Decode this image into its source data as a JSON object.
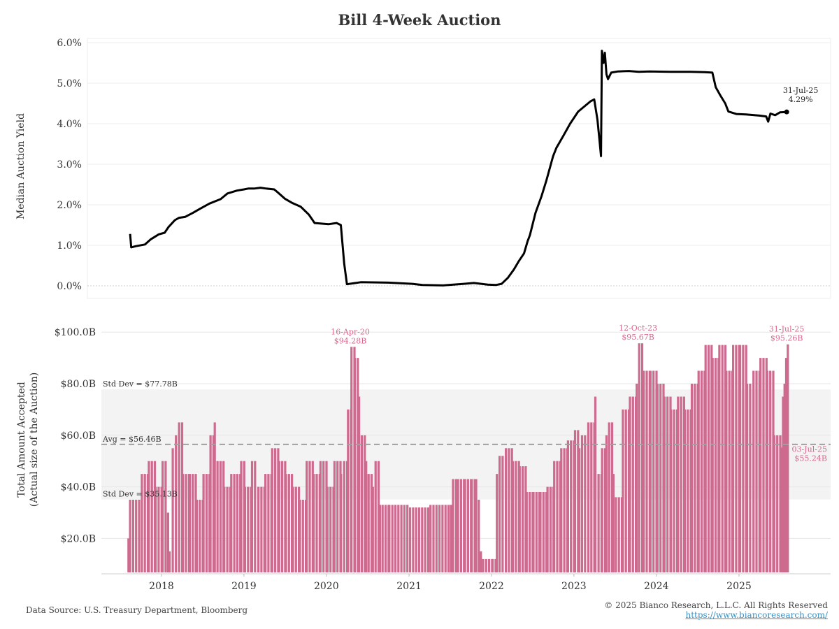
{
  "title": "Bill 4-Week Auction",
  "footer": {
    "source": "Data Source: U.S. Treasury Department, Bloomberg",
    "copyright": "© 2025 Bianco Research, L.L.C. All Rights Reserved",
    "link": "https://www.biancoresearch.com/"
  },
  "colors": {
    "line": "#000000",
    "bar": "#cd6a8d",
    "annotation": "#d9668e",
    "band": "#f3f3f3",
    "avg_line": "#a0a0a0"
  },
  "x_axis": {
    "ticks": [
      "2018",
      "2019",
      "2020",
      "2021",
      "2022",
      "2023",
      "2024",
      "2025"
    ]
  },
  "chart_data": [
    {
      "type": "line",
      "name": "yield",
      "title": "Bill 4-Week Auction",
      "ylabel": "Median Auction Yield",
      "ylim": [
        0,
        6
      ],
      "y_ticks": [
        "0.0%",
        "1.0%",
        "2.0%",
        "3.0%",
        "4.0%",
        "5.0%",
        "6.0%"
      ],
      "grid": true,
      "x": [
        "2017-08-15",
        "2017-08-20",
        "2017-09-10",
        "2017-10-20",
        "2017-11-15",
        "2017-12-20",
        "2018-01-15",
        "2018-02-01",
        "2018-03-01",
        "2018-03-20",
        "2018-04-15",
        "2018-05-20",
        "2018-06-20",
        "2018-08-01",
        "2018-09-20",
        "2018-10-20",
        "2018-12-01",
        "2019-01-01",
        "2019-01-20",
        "2019-02-15",
        "2019-03-15",
        "2019-04-10",
        "2019-05-15",
        "2019-06-01",
        "2019-07-01",
        "2019-08-01",
        "2019-09-10",
        "2019-10-15",
        "2019-11-10",
        "2020-01-10",
        "2020-02-15",
        "2020-03-05",
        "2020-03-20",
        "2020-04-01",
        "2020-06-01",
        "2020-10-01",
        "2021-01-15",
        "2021-03-01",
        "2021-06-01",
        "2021-09-01",
        "2021-10-15",
        "2021-12-15",
        "2022-01-20",
        "2022-02-15",
        "2022-03-15",
        "2022-04-10",
        "2022-05-01",
        "2022-05-25",
        "2022-06-10",
        "2022-06-20",
        "2022-07-15",
        "2022-08-10",
        "2022-09-01",
        "2022-10-01",
        "2022-10-15",
        "2022-11-15",
        "2022-12-15",
        "2023-01-20",
        "2023-02-15",
        "2023-03-15",
        "2023-04-01",
        "2023-04-15",
        "2023-04-24",
        "2023-05-01",
        "2023-05-05",
        "2023-05-12",
        "2023-05-18",
        "2023-05-25",
        "2023-06-01",
        "2023-06-15",
        "2023-07-15",
        "2023-09-01",
        "2023-10-15",
        "2023-12-01",
        "2024-03-01",
        "2024-06-01",
        "2024-08-01",
        "2024-09-05",
        "2024-09-20",
        "2024-10-10",
        "2024-11-01",
        "2024-11-15",
        "2024-12-20",
        "2025-02-01",
        "2025-04-01",
        "2025-05-01",
        "2025-05-10",
        "2025-05-20",
        "2025-06-10",
        "2025-07-01",
        "2025-07-31"
      ],
      "values": [
        1.28,
        0.95,
        0.98,
        1.02,
        1.15,
        1.27,
        1.31,
        1.45,
        1.62,
        1.68,
        1.7,
        1.8,
        1.9,
        2.03,
        2.14,
        2.28,
        2.35,
        2.38,
        2.4,
        2.4,
        2.42,
        2.4,
        2.38,
        2.3,
        2.15,
        2.05,
        1.95,
        1.76,
        1.55,
        1.52,
        1.55,
        1.5,
        0.55,
        0.04,
        0.09,
        0.08,
        0.05,
        0.02,
        0.01,
        0.05,
        0.07,
        0.03,
        0.02,
        0.05,
        0.2,
        0.4,
        0.6,
        0.8,
        1.1,
        1.25,
        1.8,
        2.2,
        2.6,
        3.2,
        3.4,
        3.7,
        4.0,
        4.3,
        4.42,
        4.55,
        4.6,
        4.1,
        3.6,
        3.2,
        5.8,
        5.5,
        5.75,
        5.22,
        5.1,
        5.26,
        5.29,
        5.3,
        5.28,
        5.29,
        5.28,
        5.28,
        5.27,
        5.26,
        4.9,
        4.7,
        4.5,
        4.3,
        4.24,
        4.23,
        4.2,
        4.18,
        4.05,
        4.25,
        4.21,
        4.28,
        4.29
      ],
      "annotations": [
        {
          "x": "2025-07-31",
          "date": "31-Jul-25",
          "value": "4.29%"
        }
      ]
    },
    {
      "type": "bar",
      "name": "accepted",
      "ylabel_line1": "Total Amount Accepted",
      "ylabel_line2": "(Actual size of the Auction)",
      "ylim": [
        6,
        104
      ],
      "y_ticks": [
        "$20.0B",
        "$40.0B",
        "$60.0B",
        "$80.0B",
        "$100.0B"
      ],
      "avg": 56.46,
      "std_upper": 77.78,
      "std_lower": 35.13,
      "avg_label": "Avg = $56.46B",
      "std_upper_label": "Std Dev = $77.78B",
      "std_lower_label": "Std Dev = $35.13B",
      "x": [
        "2017-08-03",
        "2017-08-10",
        "2017-10-01",
        "2017-11-01",
        "2017-12-01",
        "2018-01-01",
        "2018-01-25",
        "2018-02-01",
        "2018-02-15",
        "2018-03-01",
        "2018-03-15",
        "2018-04-01",
        "2018-05-01",
        "2018-06-01",
        "2018-07-01",
        "2018-08-01",
        "2018-08-20",
        "2018-09-01",
        "2018-10-01",
        "2018-11-01",
        "2018-12-15",
        "2019-01-01",
        "2019-02-01",
        "2019-03-01",
        "2019-04-01",
        "2019-05-01",
        "2019-06-01",
        "2019-07-01",
        "2019-08-01",
        "2019-09-01",
        "2019-10-01",
        "2019-11-01",
        "2019-12-01",
        "2020-01-01",
        "2020-02-01",
        "2020-03-01",
        "2020-03-15",
        "2020-04-01",
        "2020-04-16",
        "2020-05-01",
        "2020-05-20",
        "2020-06-01",
        "2020-06-20",
        "2020-07-01",
        "2020-07-20",
        "2020-08-01",
        "2020-08-20",
        "2020-09-01",
        "2020-10-01",
        "2021-01-01",
        "2021-04-01",
        "2021-07-01",
        "2021-07-10",
        "2021-08-01",
        "2021-09-01",
        "2021-10-01",
        "2021-10-20",
        "2021-11-01",
        "2021-11-10",
        "2021-11-20",
        "2022-01-01",
        "2022-01-20",
        "2022-02-01",
        "2022-03-01",
        "2022-04-01",
        "2022-05-01",
        "2022-06-01",
        "2022-07-01",
        "2022-08-01",
        "2022-09-01",
        "2022-10-01",
        "2022-11-01",
        "2022-12-01",
        "2023-01-01",
        "2023-01-20",
        "2023-02-01",
        "2023-03-01",
        "2023-04-01",
        "2023-04-15",
        "2023-05-01",
        "2023-05-20",
        "2023-06-01",
        "2023-06-20",
        "2023-07-01",
        "2023-08-01",
        "2023-09-01",
        "2023-10-01",
        "2023-10-12",
        "2023-11-01",
        "2023-12-01",
        "2024-01-01",
        "2024-02-01",
        "2024-03-01",
        "2024-04-01",
        "2024-05-01",
        "2024-06-01",
        "2024-07-01",
        "2024-08-01",
        "2024-09-01",
        "2024-10-01",
        "2024-11-01",
        "2024-12-01",
        "2025-01-01",
        "2025-02-01",
        "2025-03-01",
        "2025-04-01",
        "2025-05-01",
        "2025-06-01",
        "2025-07-03",
        "2025-07-10",
        "2025-07-17",
        "2025-07-24",
        "2025-07-31"
      ],
      "values": [
        20,
        35,
        45,
        50,
        40,
        50,
        30,
        15,
        55,
        60,
        65,
        45,
        45,
        35,
        45,
        60,
        65,
        50,
        40,
        45,
        50,
        40,
        50,
        40,
        45,
        55,
        50,
        45,
        40,
        35,
        50,
        45,
        50,
        40,
        50,
        45,
        50,
        70,
        94.28,
        90,
        75,
        60,
        50,
        45,
        40,
        50,
        33,
        33,
        33,
        32,
        33,
        33,
        43,
        43,
        43,
        43,
        43,
        35,
        15,
        12,
        12,
        45,
        52,
        55,
        50,
        48,
        38,
        38,
        38,
        40,
        50,
        55,
        58,
        62,
        55,
        60,
        65,
        75,
        45,
        55,
        60,
        65,
        45,
        36,
        70,
        75,
        80,
        95.67,
        85,
        85,
        80,
        75,
        70,
        75,
        70,
        80,
        85,
        95,
        90,
        95,
        85,
        95,
        95,
        80,
        85,
        90,
        85,
        60,
        55.24,
        75,
        80,
        90,
        95.26
      ],
      "annotations": [
        {
          "x": "2020-04-16",
          "date": "16-Apr-20",
          "value": "$94.28B"
        },
        {
          "x": "2023-10-12",
          "date": "12-Oct-23",
          "value": "$95.67B"
        },
        {
          "x": "2025-07-31",
          "date": "31-Jul-25",
          "value": "$95.26B"
        },
        {
          "x": "2025-07-03",
          "date": "03-Jul-25",
          "value": "$55.24B"
        }
      ]
    }
  ]
}
